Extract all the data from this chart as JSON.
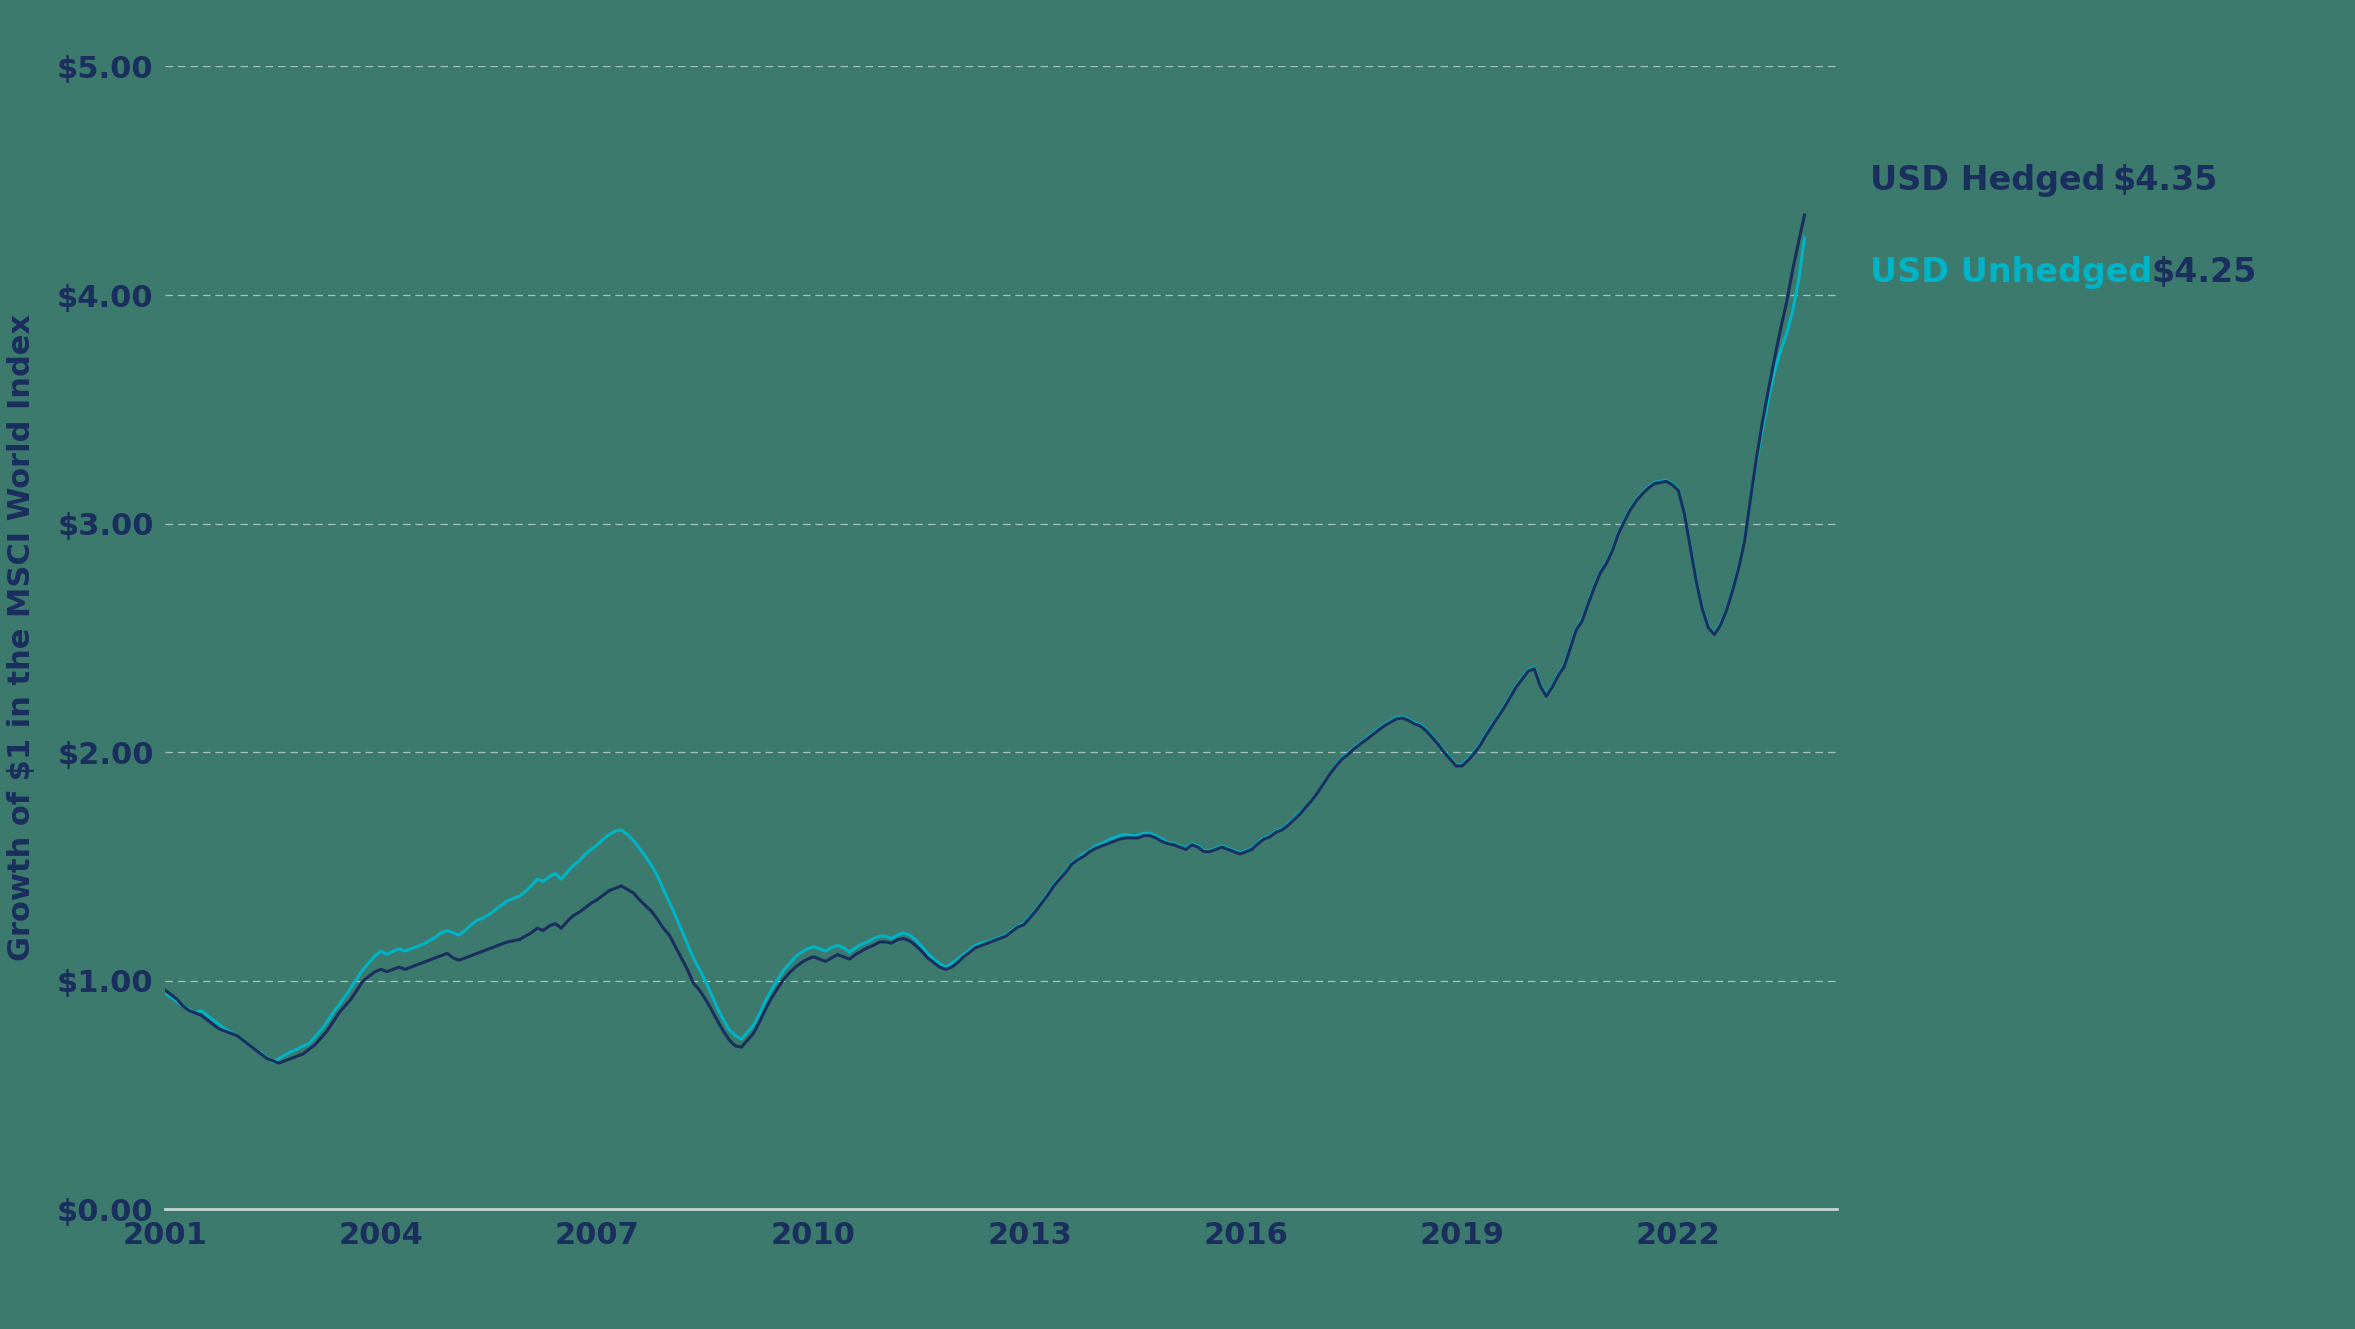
{
  "background_color": "#3c7a6d",
  "plot_bg_color": "#3c7a6d",
  "hedged_color": "#1b2f5e",
  "unhedged_color": "#00b4c8",
  "ylabel": "Growth of $1 in the MSCI World Index",
  "ylim": [
    0.0,
    5.0
  ],
  "yticks": [
    0.0,
    1.0,
    2.0,
    3.0,
    4.0,
    5.0
  ],
  "ytick_labels": [
    "$0.00",
    "$1.00",
    "$2.00",
    "$3.00",
    "$4.00",
    "$5.00"
  ],
  "xticks": [
    2001,
    2004,
    2007,
    2010,
    2013,
    2016,
    2019,
    2022
  ],
  "label_hedged": "USD Hedged",
  "label_unhedged": "USD Unhedged",
  "value_hedged": "$4.35",
  "value_unhedged": "$4.25",
  "label_color_hedged": "#1b2f5e",
  "label_color_unhedged": "#00b4c8",
  "value_color_hedged": "#1b2f5e",
  "value_color_unhedged": "#1b2f5e",
  "line_width": 2.2,
  "grid_color": "#ffffff",
  "grid_alpha": 0.55,
  "axis_color": "#c8d8d4",
  "tick_label_color": "#1b2f5e",
  "ylabel_color": "#1b2f5e",
  "xlim_left": 2001.0,
  "xlim_right": 2024.2,
  "years": [
    2001.0,
    2001.083,
    2001.167,
    2001.25,
    2001.333,
    2001.417,
    2001.5,
    2001.583,
    2001.667,
    2001.75,
    2001.833,
    2001.917,
    2002.0,
    2002.083,
    2002.167,
    2002.25,
    2002.333,
    2002.417,
    2002.5,
    2002.583,
    2002.667,
    2002.75,
    2002.833,
    2002.917,
    2003.0,
    2003.083,
    2003.167,
    2003.25,
    2003.333,
    2003.417,
    2003.5,
    2003.583,
    2003.667,
    2003.75,
    2003.833,
    2003.917,
    2004.0,
    2004.083,
    2004.167,
    2004.25,
    2004.333,
    2004.417,
    2004.5,
    2004.583,
    2004.667,
    2004.75,
    2004.833,
    2004.917,
    2005.0,
    2005.083,
    2005.167,
    2005.25,
    2005.333,
    2005.417,
    2005.5,
    2005.583,
    2005.667,
    2005.75,
    2005.833,
    2005.917,
    2006.0,
    2006.083,
    2006.167,
    2006.25,
    2006.333,
    2006.417,
    2006.5,
    2006.583,
    2006.667,
    2006.75,
    2006.833,
    2006.917,
    2007.0,
    2007.083,
    2007.167,
    2007.25,
    2007.333,
    2007.417,
    2007.5,
    2007.583,
    2007.667,
    2007.75,
    2007.833,
    2007.917,
    2008.0,
    2008.083,
    2008.167,
    2008.25,
    2008.333,
    2008.417,
    2008.5,
    2008.583,
    2008.667,
    2008.75,
    2008.833,
    2008.917,
    2009.0,
    2009.083,
    2009.167,
    2009.25,
    2009.333,
    2009.417,
    2009.5,
    2009.583,
    2009.667,
    2009.75,
    2009.833,
    2009.917,
    2010.0,
    2010.083,
    2010.167,
    2010.25,
    2010.333,
    2010.417,
    2010.5,
    2010.583,
    2010.667,
    2010.75,
    2010.833,
    2010.917,
    2011.0,
    2011.083,
    2011.167,
    2011.25,
    2011.333,
    2011.417,
    2011.5,
    2011.583,
    2011.667,
    2011.75,
    2011.833,
    2011.917,
    2012.0,
    2012.083,
    2012.167,
    2012.25,
    2012.333,
    2012.417,
    2012.5,
    2012.583,
    2012.667,
    2012.75,
    2012.833,
    2012.917,
    2013.0,
    2013.083,
    2013.167,
    2013.25,
    2013.333,
    2013.417,
    2013.5,
    2013.583,
    2013.667,
    2013.75,
    2013.833,
    2013.917,
    2014.0,
    2014.083,
    2014.167,
    2014.25,
    2014.333,
    2014.417,
    2014.5,
    2014.583,
    2014.667,
    2014.75,
    2014.833,
    2014.917,
    2015.0,
    2015.083,
    2015.167,
    2015.25,
    2015.333,
    2015.417,
    2015.5,
    2015.583,
    2015.667,
    2015.75,
    2015.833,
    2015.917,
    2016.0,
    2016.083,
    2016.167,
    2016.25,
    2016.333,
    2016.417,
    2016.5,
    2016.583,
    2016.667,
    2016.75,
    2016.833,
    2016.917,
    2017.0,
    2017.083,
    2017.167,
    2017.25,
    2017.333,
    2017.417,
    2017.5,
    2017.583,
    2017.667,
    2017.75,
    2017.833,
    2017.917,
    2018.0,
    2018.083,
    2018.167,
    2018.25,
    2018.333,
    2018.417,
    2018.5,
    2018.583,
    2018.667,
    2018.75,
    2018.833,
    2018.917,
    2019.0,
    2019.083,
    2019.167,
    2019.25,
    2019.333,
    2019.417,
    2019.5,
    2019.583,
    2019.667,
    2019.75,
    2019.833,
    2019.917,
    2020.0,
    2020.083,
    2020.167,
    2020.25,
    2020.333,
    2020.417,
    2020.5,
    2020.583,
    2020.667,
    2020.75,
    2020.833,
    2020.917,
    2021.0,
    2021.083,
    2021.167,
    2021.25,
    2021.333,
    2021.417,
    2021.5,
    2021.583,
    2021.667,
    2021.75,
    2021.833,
    2021.917,
    2022.0,
    2022.083,
    2022.167,
    2022.25,
    2022.333,
    2022.417,
    2022.5,
    2022.583,
    2022.667,
    2022.75,
    2022.833,
    2022.917,
    2023.0,
    2023.083,
    2023.167,
    2023.25,
    2023.333,
    2023.417,
    2023.5,
    2023.583,
    2023.667,
    2023.75
  ],
  "hedged": [
    0.96,
    0.94,
    0.92,
    0.89,
    0.87,
    0.86,
    0.85,
    0.83,
    0.81,
    0.79,
    0.78,
    0.77,
    0.76,
    0.74,
    0.72,
    0.7,
    0.68,
    0.66,
    0.65,
    0.64,
    0.65,
    0.66,
    0.67,
    0.68,
    0.7,
    0.72,
    0.75,
    0.78,
    0.82,
    0.86,
    0.89,
    0.92,
    0.96,
    1.0,
    1.02,
    1.04,
    1.05,
    1.04,
    1.05,
    1.06,
    1.05,
    1.06,
    1.07,
    1.08,
    1.09,
    1.1,
    1.11,
    1.12,
    1.1,
    1.09,
    1.1,
    1.11,
    1.12,
    1.13,
    1.14,
    1.15,
    1.16,
    1.17,
    1.175,
    1.18,
    1.195,
    1.21,
    1.23,
    1.22,
    1.24,
    1.25,
    1.23,
    1.26,
    1.285,
    1.3,
    1.32,
    1.34,
    1.355,
    1.375,
    1.395,
    1.405,
    1.415,
    1.4,
    1.385,
    1.355,
    1.33,
    1.305,
    1.27,
    1.23,
    1.2,
    1.15,
    1.1,
    1.05,
    0.99,
    0.96,
    0.92,
    0.875,
    0.825,
    0.78,
    0.74,
    0.715,
    0.71,
    0.74,
    0.77,
    0.82,
    0.875,
    0.925,
    0.965,
    1.005,
    1.035,
    1.06,
    1.08,
    1.095,
    1.105,
    1.095,
    1.085,
    1.1,
    1.115,
    1.105,
    1.095,
    1.115,
    1.13,
    1.145,
    1.155,
    1.17,
    1.17,
    1.165,
    1.18,
    1.185,
    1.175,
    1.155,
    1.13,
    1.1,
    1.08,
    1.06,
    1.05,
    1.06,
    1.08,
    1.105,
    1.125,
    1.145,
    1.155,
    1.165,
    1.175,
    1.185,
    1.195,
    1.215,
    1.235,
    1.245,
    1.275,
    1.305,
    1.34,
    1.375,
    1.415,
    1.445,
    1.475,
    1.51,
    1.53,
    1.545,
    1.565,
    1.58,
    1.59,
    1.6,
    1.61,
    1.62,
    1.625,
    1.625,
    1.625,
    1.635,
    1.635,
    1.625,
    1.61,
    1.6,
    1.595,
    1.585,
    1.575,
    1.595,
    1.585,
    1.565,
    1.565,
    1.575,
    1.585,
    1.575,
    1.565,
    1.555,
    1.565,
    1.575,
    1.6,
    1.62,
    1.63,
    1.65,
    1.66,
    1.68,
    1.705,
    1.73,
    1.76,
    1.79,
    1.825,
    1.865,
    1.905,
    1.94,
    1.97,
    1.99,
    2.015,
    2.035,
    2.055,
    2.075,
    2.095,
    2.115,
    2.13,
    2.145,
    2.15,
    2.14,
    2.125,
    2.115,
    2.095,
    2.065,
    2.035,
    2.0,
    1.97,
    1.94,
    1.94,
    1.965,
    1.995,
    2.03,
    2.075,
    2.115,
    2.155,
    2.195,
    2.24,
    2.285,
    2.32,
    2.355,
    2.365,
    2.29,
    2.245,
    2.285,
    2.335,
    2.375,
    2.455,
    2.535,
    2.575,
    2.65,
    2.72,
    2.785,
    2.825,
    2.88,
    2.955,
    3.01,
    3.06,
    3.1,
    3.13,
    3.155,
    3.175,
    3.18,
    3.185,
    3.17,
    3.145,
    3.045,
    2.895,
    2.745,
    2.625,
    2.545,
    2.515,
    2.555,
    2.62,
    2.705,
    2.8,
    2.92,
    3.105,
    3.285,
    3.445,
    3.585,
    3.72,
    3.85,
    3.965,
    4.105,
    4.23,
    4.35
  ],
  "unhedged": [
    0.945,
    0.93,
    0.91,
    0.89,
    0.875,
    0.86,
    0.87,
    0.85,
    0.83,
    0.81,
    0.79,
    0.775,
    0.76,
    0.74,
    0.72,
    0.7,
    0.685,
    0.665,
    0.645,
    0.66,
    0.675,
    0.69,
    0.7,
    0.715,
    0.725,
    0.755,
    0.785,
    0.82,
    0.86,
    0.895,
    0.93,
    0.97,
    1.01,
    1.05,
    1.08,
    1.11,
    1.13,
    1.115,
    1.13,
    1.14,
    1.13,
    1.14,
    1.15,
    1.16,
    1.175,
    1.19,
    1.21,
    1.22,
    1.21,
    1.2,
    1.22,
    1.245,
    1.265,
    1.275,
    1.29,
    1.31,
    1.33,
    1.35,
    1.36,
    1.37,
    1.39,
    1.415,
    1.445,
    1.435,
    1.455,
    1.47,
    1.445,
    1.475,
    1.505,
    1.525,
    1.555,
    1.575,
    1.595,
    1.62,
    1.64,
    1.655,
    1.66,
    1.64,
    1.615,
    1.58,
    1.545,
    1.505,
    1.46,
    1.4,
    1.345,
    1.285,
    1.225,
    1.16,
    1.1,
    1.05,
    1.0,
    0.94,
    0.88,
    0.83,
    0.785,
    0.76,
    0.745,
    0.775,
    0.805,
    0.855,
    0.91,
    0.96,
    1.005,
    1.045,
    1.075,
    1.105,
    1.125,
    1.14,
    1.15,
    1.14,
    1.13,
    1.145,
    1.155,
    1.145,
    1.125,
    1.145,
    1.16,
    1.17,
    1.185,
    1.195,
    1.195,
    1.185,
    1.2,
    1.21,
    1.2,
    1.18,
    1.15,
    1.12,
    1.095,
    1.075,
    1.06,
    1.075,
    1.095,
    1.115,
    1.135,
    1.155,
    1.165,
    1.17,
    1.18,
    1.19,
    1.2,
    1.22,
    1.24,
    1.25,
    1.28,
    1.31,
    1.345,
    1.38,
    1.42,
    1.45,
    1.48,
    1.515,
    1.535,
    1.555,
    1.57,
    1.59,
    1.6,
    1.615,
    1.625,
    1.635,
    1.64,
    1.635,
    1.635,
    1.645,
    1.645,
    1.635,
    1.62,
    1.605,
    1.6,
    1.59,
    1.58,
    1.6,
    1.59,
    1.57,
    1.57,
    1.58,
    1.59,
    1.58,
    1.57,
    1.56,
    1.57,
    1.58,
    1.605,
    1.625,
    1.635,
    1.655,
    1.665,
    1.685,
    1.71,
    1.735,
    1.76,
    1.79,
    1.825,
    1.865,
    1.905,
    1.945,
    1.975,
    1.995,
    2.02,
    2.04,
    2.06,
    2.08,
    2.1,
    2.12,
    2.135,
    2.15,
    2.155,
    2.145,
    2.13,
    2.12,
    2.1,
    2.07,
    2.04,
    2.005,
    1.975,
    1.945,
    1.945,
    1.97,
    2.0,
    2.035,
    2.08,
    2.12,
    2.16,
    2.2,
    2.245,
    2.29,
    2.325,
    2.36,
    2.37,
    2.295,
    2.25,
    2.29,
    2.34,
    2.38,
    2.46,
    2.54,
    2.58,
    2.655,
    2.725,
    2.79,
    2.83,
    2.885,
    2.96,
    3.015,
    3.065,
    3.105,
    3.135,
    3.16,
    3.18,
    3.185,
    3.19,
    3.175,
    3.15,
    3.05,
    2.9,
    2.75,
    2.63,
    2.55,
    2.52,
    2.56,
    2.625,
    2.71,
    2.805,
    2.925,
    3.1,
    3.27,
    3.415,
    3.545,
    3.665,
    3.755,
    3.83,
    3.925,
    4.06,
    4.25
  ]
}
